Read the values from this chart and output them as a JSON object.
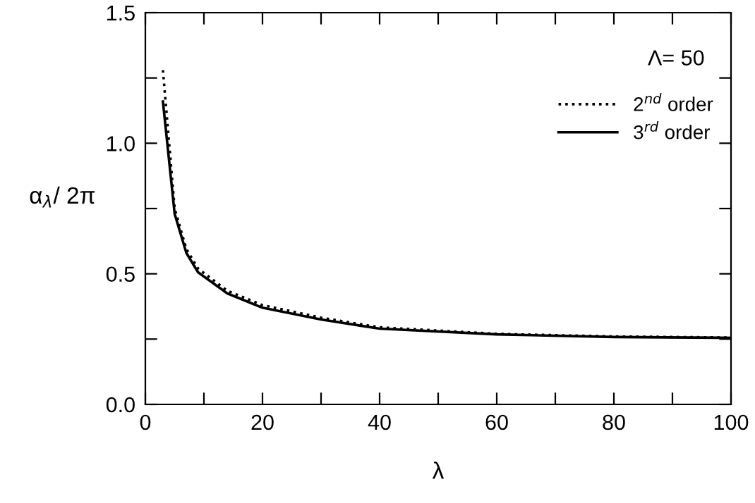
{
  "chart_data": {
    "type": "line",
    "xlabel": "λ",
    "ylabel": "α$_{λ}$/ 2π",
    "annotations": [
      "Λ= 50"
    ],
    "xlim": [
      0,
      100
    ],
    "xticks": [
      0,
      {
        "value": 10,
        "label": null
      },
      20,
      {
        "value": 30,
        "label": null
      },
      40,
      {
        "value": 50,
        "label": null
      },
      60,
      {
        "value": 70,
        "label": null
      },
      80,
      {
        "value": 90,
        "label": null
      },
      100
    ],
    "ylim": [
      0,
      1.5
    ],
    "yticks": [
      {
        "value": 0,
        "label": "0.0"
      },
      {
        "value": 0.25,
        "label": null
      },
      {
        "value": 0.5,
        "label": "0.5"
      },
      {
        "value": 0.75,
        "label": null
      },
      {
        "value": 1,
        "label": "1.0"
      },
      {
        "value": 1.25,
        "label": null
      },
      {
        "value": 1.5,
        "label": "1.5"
      }
    ],
    "grid": false,
    "legend": "top right",
    "marker": "none",
    "series": [
      {
        "name": "2$^{nd}$ order",
        "color": "#000000",
        "line_style": "dotted",
        "x": [
          3,
          5,
          7,
          9,
          14,
          20,
          30,
          40,
          60,
          80,
          100
        ],
        "values": [
          1.28,
          0.75,
          0.595,
          0.52,
          0.435,
          0.38,
          0.332,
          0.295,
          0.27,
          0.26,
          0.256
        ]
      },
      {
        "name": "3$^{rd}$ order",
        "color": "#000000",
        "line_style": "solid",
        "x": [
          3,
          5,
          7,
          9,
          14,
          20,
          30,
          40,
          60,
          80,
          100
        ],
        "values": [
          1.16,
          0.73,
          0.58,
          0.506,
          0.425,
          0.37,
          0.325,
          0.29,
          0.268,
          0.258,
          0.255
        ]
      }
    ]
  }
}
